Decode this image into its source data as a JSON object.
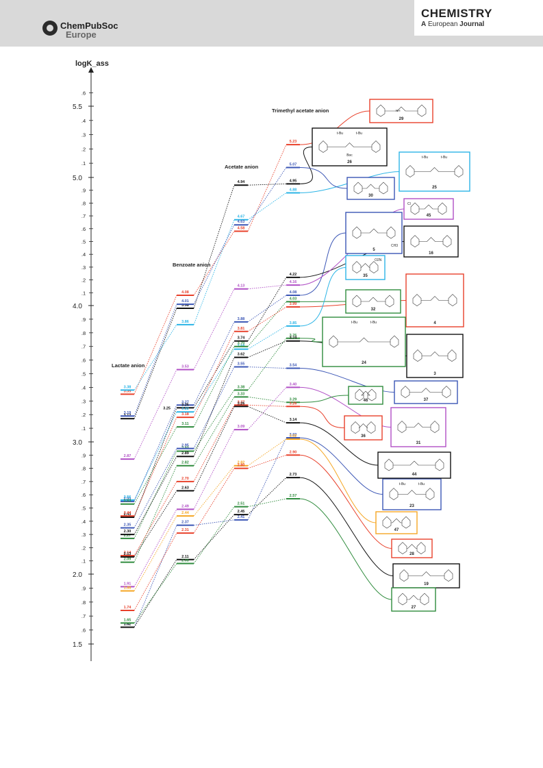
{
  "header": {
    "publisher_line1": "ChemPubSoc",
    "publisher_line2": "Europe",
    "journal_line1": "CHEMISTRY",
    "journal_prefix": "A",
    "journal_european": "European",
    "journal_word": "Journal"
  },
  "chart_data": {
    "type": "line",
    "title": "",
    "ylabel": "logK_ass",
    "ylim": [
      1.45,
      5.72
    ],
    "y_major_ticks": [
      "1.5",
      "2.0",
      "3.0",
      "4.0",
      "5.0",
      "5.5"
    ],
    "y_minor_ticks": [
      ".6",
      ".7",
      ".8",
      ".9",
      ".1",
      ".2",
      ".3",
      ".4",
      ".5",
      ".6",
      ".7",
      ".8",
      ".9",
      ".1",
      ".2",
      ".3",
      ".4",
      ".5",
      ".6",
      ".7",
      ".8",
      ".9",
      ".1",
      ".2",
      ".3",
      ".4",
      ".6"
    ],
    "anions": [
      "Lactate anion",
      "Benzoate anion",
      "Acetate anion",
      "Trimethyl acetate anion"
    ],
    "series": [
      {
        "name": "29",
        "color": "#e8402a",
        "values": [
          3.35,
          4.08,
          4.58,
          5.23
        ]
      },
      {
        "name": "26",
        "color": "#111111",
        "values": [
          3.17,
          3.98,
          4.94,
          4.95
        ]
      },
      {
        "name": "25",
        "color": "#2ab4e6",
        "values": [
          3.38,
          3.86,
          4.67,
          4.88
        ]
      },
      {
        "name": "30",
        "color": "#3a55b5",
        "values": [
          3.19,
          4.01,
          4.63,
          5.07
        ]
      },
      {
        "name": "45",
        "color": "#b04ec5",
        "values": [
          2.87,
          3.53,
          4.13,
          4.16
        ]
      },
      {
        "name": "5",
        "color": "#3a55b5",
        "values": [
          2.55,
          3.27,
          3.88,
          4.08
        ]
      },
      {
        "name": "16",
        "color": "#111111",
        "values": [
          2.43,
          3.25,
          3.74,
          4.22
        ]
      },
      {
        "name": "35",
        "color": "#2ab4e6",
        "values": [
          2.56,
          3.22,
          3.68,
          3.85
        ]
      },
      {
        "name": "32",
        "color": "#2e8b3c",
        "values": [
          2.53,
          3.11,
          3.7,
          4.03
        ]
      },
      {
        "name": "4",
        "color": "#e8402a",
        "values": [
          2.44,
          3.18,
          3.81,
          3.99
        ]
      },
      {
        "name": "24",
        "color": "#2e8b3c",
        "values": [
          2.27,
          2.93,
          3.38,
          3.76
        ]
      },
      {
        "name": "3",
        "color": "#111111",
        "values": [
          2.3,
          2.89,
          3.62,
          3.74
        ]
      },
      {
        "name": "37",
        "color": "#3a55b5",
        "values": [
          2.35,
          2.95,
          3.55,
          3.54
        ]
      },
      {
        "name": "46",
        "color": "#2e8b3c",
        "values": [
          2.09,
          2.82,
          3.33,
          3.29
        ]
      },
      {
        "name": "36",
        "color": "#e8402a",
        "values": [
          2.14,
          2.7,
          3.27,
          3.26
        ]
      },
      {
        "name": "31",
        "color": "#b04ec5",
        "values": [
          1.91,
          2.49,
          3.09,
          3.4
        ]
      },
      {
        "name": "44",
        "color": "#111111",
        "values": [
          2.13,
          2.63,
          3.26,
          3.14
        ]
      },
      {
        "name": "23",
        "color": "#3a55b5",
        "values": [
          1.62,
          2.37,
          2.41,
          3.03
        ]
      },
      {
        "name": "47",
        "color": "#f5a623",
        "values": [
          1.88,
          2.44,
          2.82,
          3.02
        ]
      },
      {
        "name": "28",
        "color": "#e8402a",
        "values": [
          1.74,
          2.31,
          2.8,
          2.9
        ]
      },
      {
        "name": "19",
        "color": "#111111",
        "values": [
          1.62,
          2.11,
          2.45,
          2.73
        ]
      },
      {
        "name": "27",
        "color": "#2e8b3c",
        "values": [
          1.65,
          2.08,
          2.51,
          2.57
        ]
      }
    ],
    "extra_level_labels": [
      {
        "level": "lactate",
        "value": "3.25"
      }
    ]
  },
  "compounds": {
    "29": {
      "label": "29",
      "amine": "NH",
      "color": "#e8402a"
    },
    "26": {
      "label": "26",
      "tbu": "t-Bu",
      "boc": "Boc",
      "color": "#111111"
    },
    "25": {
      "label": "25",
      "tbu": "t-Bu",
      "color": "#2ab4e6"
    },
    "30": {
      "label": "30",
      "color": "#3a55b5"
    },
    "45": {
      "label": "45",
      "cl": "Cl",
      "color": "#b04ec5"
    },
    "5": {
      "label": "5",
      "ch3": "CH3",
      "color": "#3a55b5"
    },
    "16": {
      "label": "16",
      "color": "#111111"
    },
    "35": {
      "label": "35",
      "no2": "O2N",
      "color": "#2ab4e6"
    },
    "4": {
      "label": "4",
      "color": "#e8402a"
    },
    "32": {
      "label": "32",
      "color": "#2e8b3c"
    },
    "24": {
      "label": "24",
      "tbu": "t-Bu",
      "color": "#2e8b3c"
    },
    "3": {
      "label": "3",
      "color": "#111111"
    },
    "37": {
      "label": "37",
      "color": "#3a55b5"
    },
    "46": {
      "label": "46",
      "color": "#2e8b3c"
    },
    "36": {
      "label": "36",
      "color": "#e8402a"
    },
    "31": {
      "label": "31",
      "color": "#b04ec5"
    },
    "44": {
      "label": "44",
      "color": "#111111"
    },
    "23": {
      "label": "23",
      "tbu": "t-Bu",
      "color": "#3a55b5"
    },
    "47": {
      "label": "47",
      "color": "#f5a623"
    },
    "28": {
      "label": "28",
      "color": "#e8402a"
    },
    "19": {
      "label": "19",
      "color": "#111111"
    },
    "27": {
      "label": "27",
      "color": "#2e8b3c"
    }
  }
}
